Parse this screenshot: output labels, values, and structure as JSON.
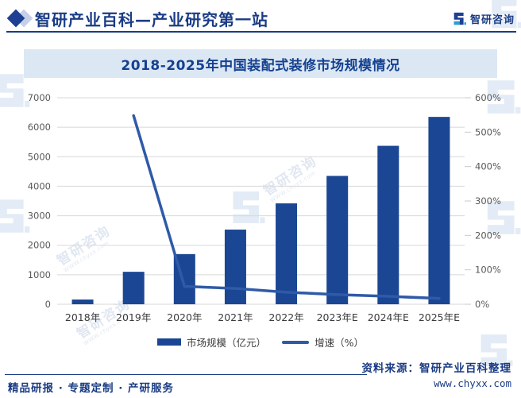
{
  "header": {
    "title": "智研产业百科—产业研究第一站",
    "brand": "智研咨询"
  },
  "chart": {
    "title": "2018-2025年中国装配式装修市场规模情况"
  },
  "chart_data": {
    "type": "bar",
    "subtype": "bar+line combo, dual axis",
    "title": "2018-2025年中国装配式装修市场规模情况",
    "categories": [
      "2018年",
      "2019年",
      "2020年",
      "2021年",
      "2022年",
      "2023年E",
      "2024年E",
      "2025年E"
    ],
    "series": [
      {
        "name": "市场规模（亿元）",
        "type": "bar",
        "axis": "left",
        "values": [
          160,
          1100,
          1700,
          2530,
          3420,
          4350,
          5370,
          6350
        ]
      },
      {
        "name": "增速（%）",
        "type": "line",
        "axis": "right",
        "values": [
          null,
          548,
          52,
          46,
          35,
          28,
          23,
          17
        ]
      }
    ],
    "left_axis": {
      "min": 0,
      "max": 7000,
      "step": 1000,
      "ticks": [
        "0",
        "1000",
        "2000",
        "3000",
        "4000",
        "5000",
        "6000",
        "7000"
      ]
    },
    "right_axis": {
      "min": 0,
      "max": 600,
      "step": 100,
      "ticks": [
        "0%",
        "100%",
        "200%",
        "300%",
        "400%",
        "500%",
        "600%"
      ]
    },
    "legend_position": "bottom",
    "grid": true,
    "colors": {
      "bar": "#1b4693",
      "line": "#2f5aa7",
      "grid": "#d8d8d8",
      "tick_text": "#595959",
      "category_text": "#3b3b3b"
    }
  },
  "footer": {
    "tagline": "精品研报 · 专题定制 · 产研服务",
    "source_label": "资料来源：智研产业百科整理",
    "website": "www.chyxx.com"
  },
  "watermark": {
    "text": "智研咨询",
    "url": "WWW.chyxx.com"
  }
}
